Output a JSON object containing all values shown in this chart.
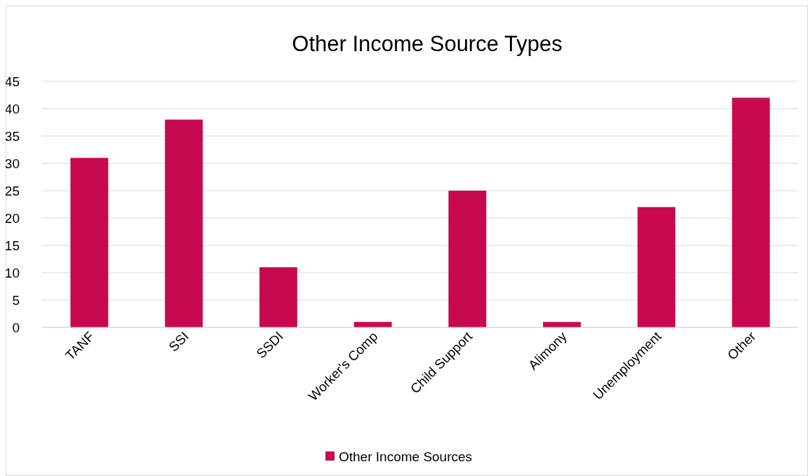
{
  "chart_data": {
    "type": "bar",
    "title": "Other Income Source Types",
    "categories": [
      "TANF",
      "SSI",
      "SSDI",
      "Worker's Comp",
      "Child Support",
      "Alimony",
      "Unemployment",
      "Other"
    ],
    "series": [
      {
        "name": "Other Income Sources",
        "color": "#c8094f",
        "values": [
          31,
          38,
          11,
          1,
          25,
          1,
          22,
          42
        ]
      }
    ],
    "ylim": [
      0,
      45
    ],
    "yticks": [
      0,
      5,
      10,
      15,
      20,
      25,
      30,
      35,
      40,
      45
    ],
    "grid": "y",
    "legend": "bottom"
  }
}
